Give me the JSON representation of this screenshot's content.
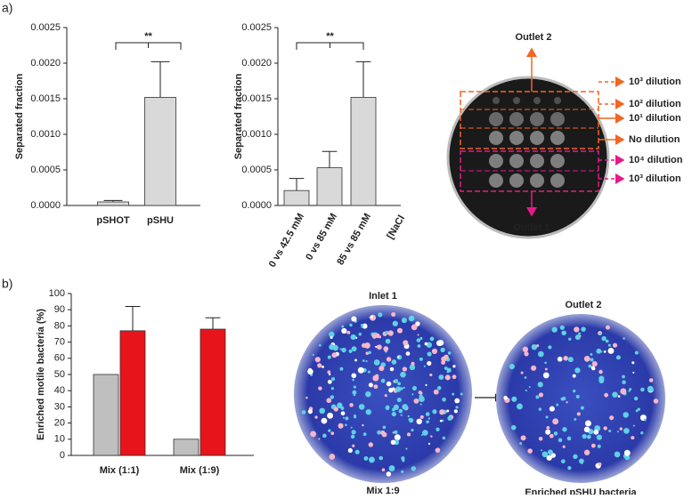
{
  "chart_data": [
    {
      "type": "bar",
      "ylabel": "Separated fraction",
      "categories": [
        "pSHOT",
        "pSHU"
      ],
      "values": [
        5e-05,
        0.00152
      ],
      "errors": [
        2e-05,
        0.0005
      ],
      "color": "#d9d9d9",
      "ylim": [
        0,
        0.0025
      ],
      "yticks": [
        {
          "value": 0,
          "label": "0.0000"
        },
        {
          "value": 0.0005,
          "label": "0.0005"
        },
        {
          "value": 0.001,
          "label": "0.0010"
        },
        {
          "value": 0.0015,
          "label": "0.0015"
        },
        {
          "value": 0.002,
          "label": "0.0020"
        },
        {
          "value": 0.0025,
          "label": "0.0025"
        }
      ],
      "annotation": "**"
    },
    {
      "type": "bar",
      "ylabel": "Separated fraction",
      "xlabel": "[NaCl",
      "categories": [
        "0 vs 42.5 mM",
        "0 vs 85 mM",
        "85 vs 85 mM"
      ],
      "values": [
        0.00021,
        0.00053,
        0.00152
      ],
      "errors": [
        0.00017,
        0.00023,
        0.0005
      ],
      "color": "#d9d9d9",
      "ylim": [
        0,
        0.0025
      ],
      "yticks": [
        {
          "value": 0,
          "label": "0.0000"
        },
        {
          "value": 0.0005,
          "label": "0.0005"
        },
        {
          "value": 0.001,
          "label": "0.0010"
        },
        {
          "value": 0.0015,
          "label": "0.0015"
        },
        {
          "value": 0.002,
          "label": "0.0020"
        },
        {
          "value": 0.0025,
          "label": "0.0025"
        }
      ],
      "annotation": "**"
    },
    {
      "type": "bar",
      "ylabel": "Enriched motile bacteria (%)",
      "categories": [
        "Mix (1:1)",
        "Mix (1:9)"
      ],
      "series": [
        {
          "color": "#bfbfbf",
          "values": [
            50,
            10
          ]
        },
        {
          "color": "#e8141c",
          "values": [
            77,
            78
          ],
          "errors": [
            15,
            7
          ]
        }
      ],
      "ylim": [
        0,
        100
      ],
      "yticks": [
        0,
        10,
        20,
        30,
        40,
        50,
        60,
        70,
        80,
        90,
        100
      ]
    }
  ],
  "figure": {
    "panel_labels": [
      "a)",
      "b)"
    ],
    "plate_a": {
      "outlets": [
        "Outlet 2",
        "Outlet 1"
      ],
      "dilutions": [
        "10³ dilution",
        "10² dilution",
        "10¹ dilution",
        "No dilution",
        "10⁴ dilution",
        "10³ dilution"
      ]
    },
    "plate_b": {
      "left_title": "Inlet 1",
      "left_caption": "Mix 1:9",
      "right_title": "Outlet 2",
      "right_caption": "Enriched pSHU bacteria"
    }
  }
}
